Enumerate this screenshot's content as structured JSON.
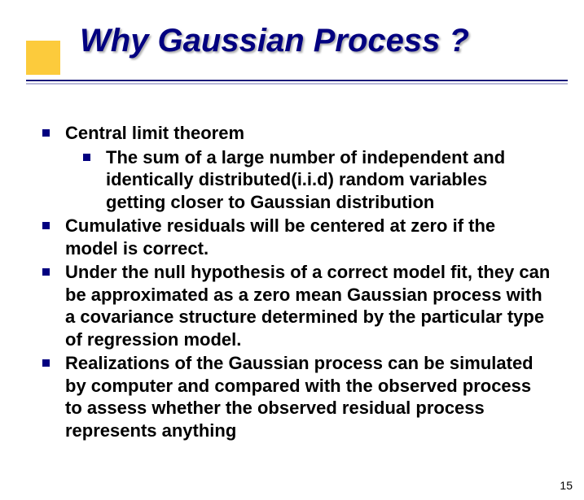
{
  "title": "Why Gaussian Process ?",
  "bullets": {
    "b1": "Central limit theorem",
    "b1_1": "The sum of a large number of independent and identically distributed(i.i.d) random variables getting closer to Gaussian distribution",
    "b2": "Cumulative residuals will be centered at zero if the model  is correct.",
    "b3": "Under the null hypothesis of a correct model fit, they can be approximated as a zero mean Gaussian process with a covariance structure determined by the particular type of regression model.",
    "b4": "Realizations of the Gaussian process can be simulated by computer and compared with the observed process to      assess whether the observed residual process represents anything"
  },
  "pageNumber": "15",
  "colors": {
    "accent": "#fccb3c",
    "title": "#020080",
    "bullet": "#020080"
  }
}
